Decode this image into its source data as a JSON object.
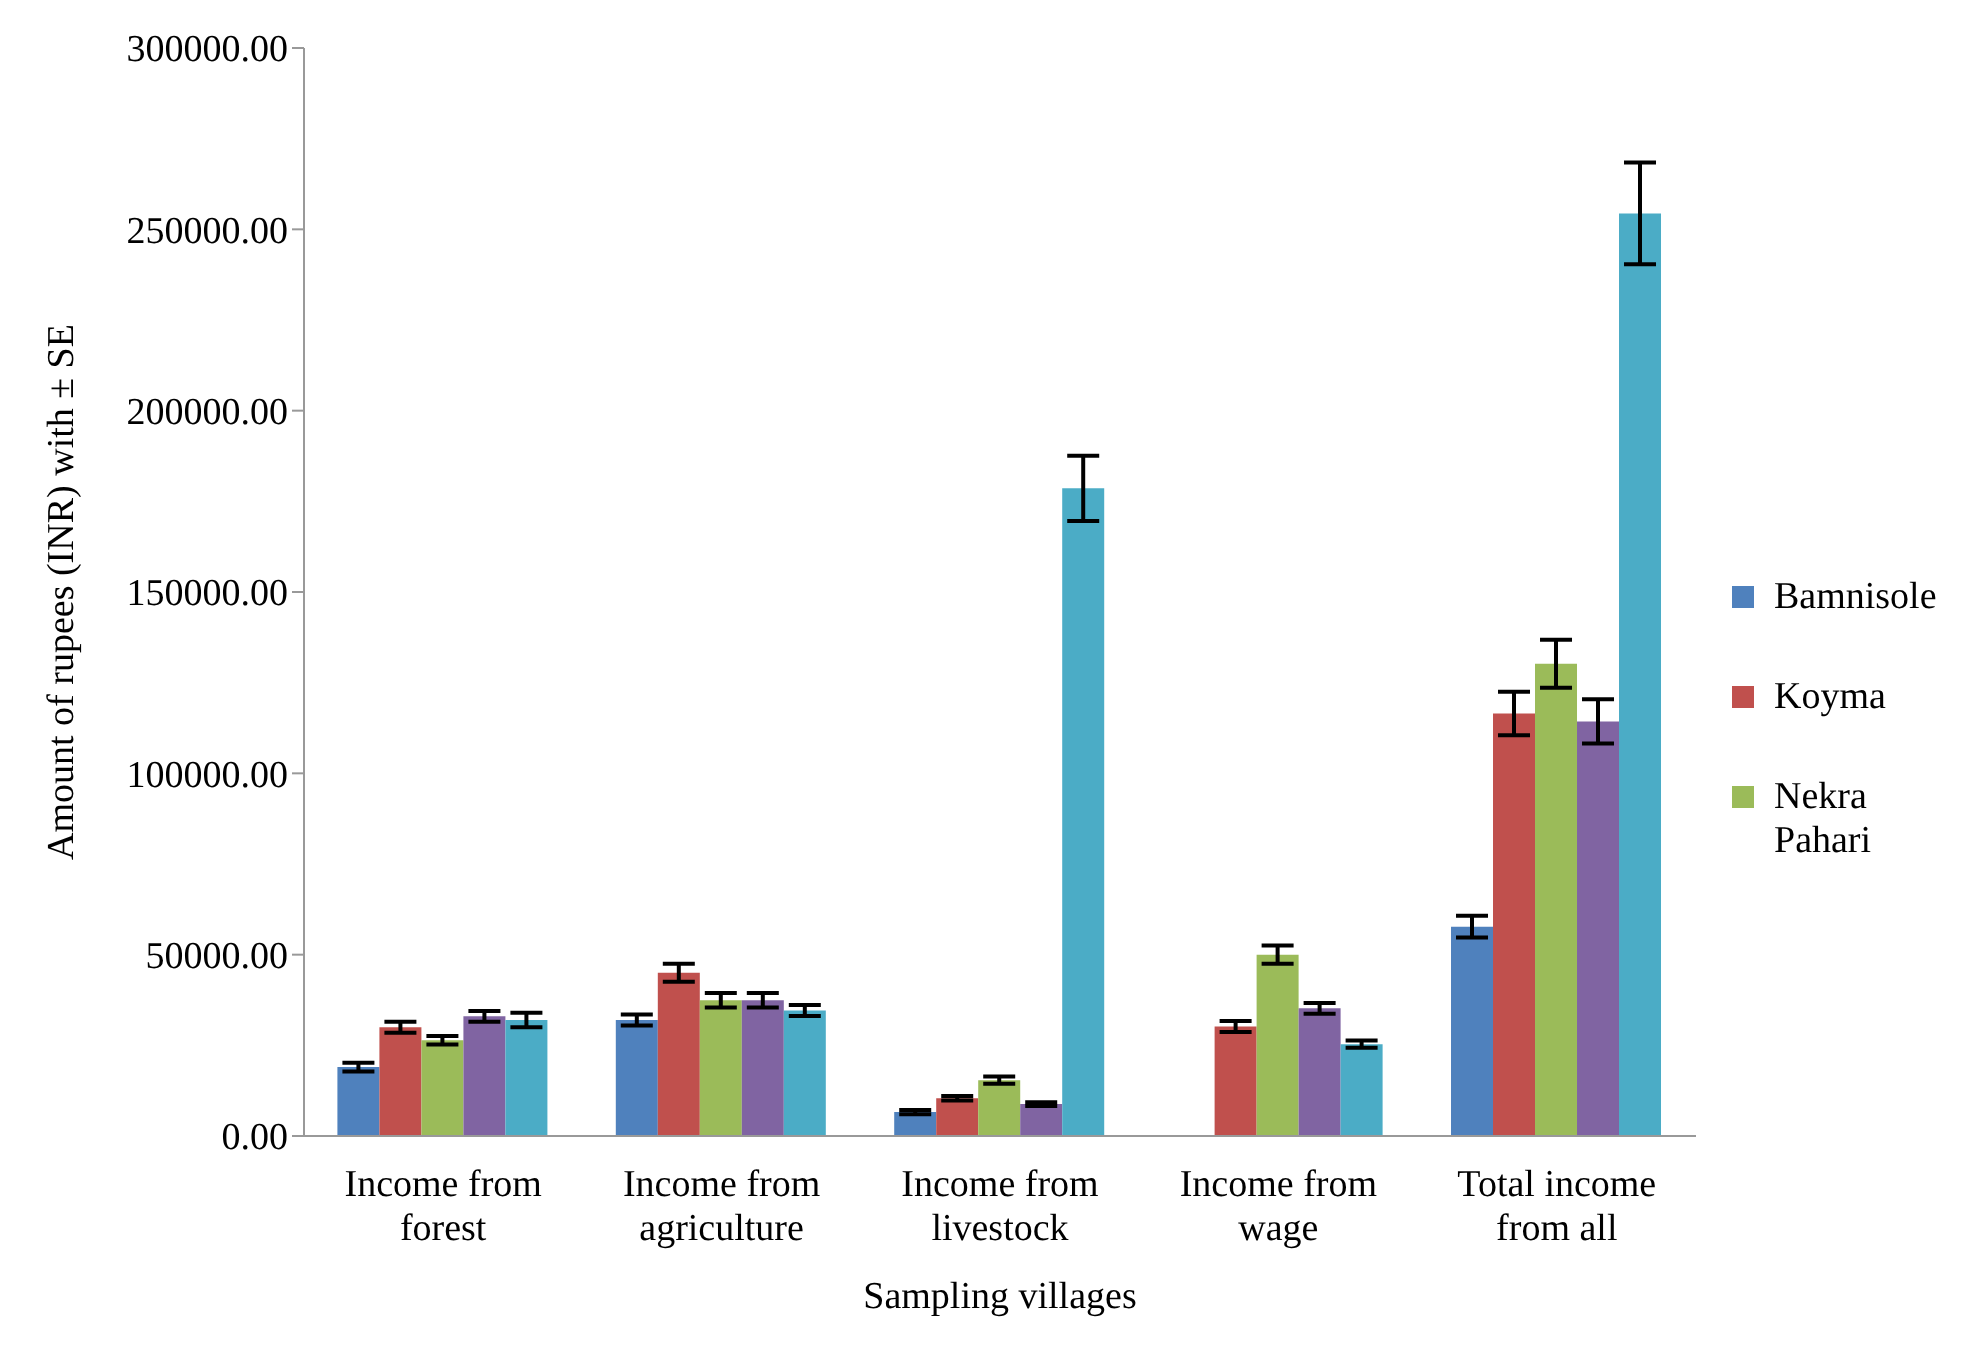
{
  "chart_data": {
    "type": "bar",
    "xlabel": "Sampling villages",
    "ylabel": "Amount of rupees (INR) with ± SE",
    "categories": [
      "Income from forest",
      "Income from agriculture",
      "Income from livestock",
      "Income from wage",
      "Total income from all"
    ],
    "series": [
      {
        "name": "Bamnisole",
        "color": "#4f81bd",
        "values": [
          19000,
          32000,
          6600,
          null,
          57700
        ],
        "errors": [
          1200,
          1500,
          600,
          null,
          3000
        ]
      },
      {
        "name": "Koyma",
        "color": "#c0504d",
        "values": [
          30000,
          45000,
          10400,
          30200,
          116500
        ],
        "errors": [
          1500,
          2500,
          600,
          1500,
          6000
        ]
      },
      {
        "name": "Nekra Pahari",
        "color": "#9bbb59",
        "values": [
          26400,
          37400,
          15400,
          50000,
          130200
        ],
        "errors": [
          1200,
          2000,
          1000,
          2500,
          6600
        ]
      },
      {
        "color": "#8064a2",
        "values": [
          33000,
          37400,
          8800,
          35200,
          114300
        ],
        "errors": [
          1500,
          2000,
          500,
          1500,
          6100
        ]
      },
      {
        "color": "#4bacc6",
        "values": [
          32000,
          34600,
          178600,
          25300,
          254400
        ],
        "errors": [
          2000,
          1500,
          9000,
          1000,
          14000
        ]
      }
    ],
    "ylim": [
      0,
      300000
    ],
    "yticks": [
      {
        "value": 0,
        "label": "0.00"
      },
      {
        "value": 50000,
        "label": "50000.00"
      },
      {
        "value": 100000,
        "label": "100000.00"
      },
      {
        "value": 150000,
        "label": "150000.00"
      },
      {
        "value": 200000,
        "label": "200000.00"
      },
      {
        "value": 250000,
        "label": "250000.00"
      },
      {
        "value": 300000,
        "label": "300000.00"
      }
    ],
    "grid": false,
    "legend": "right"
  }
}
